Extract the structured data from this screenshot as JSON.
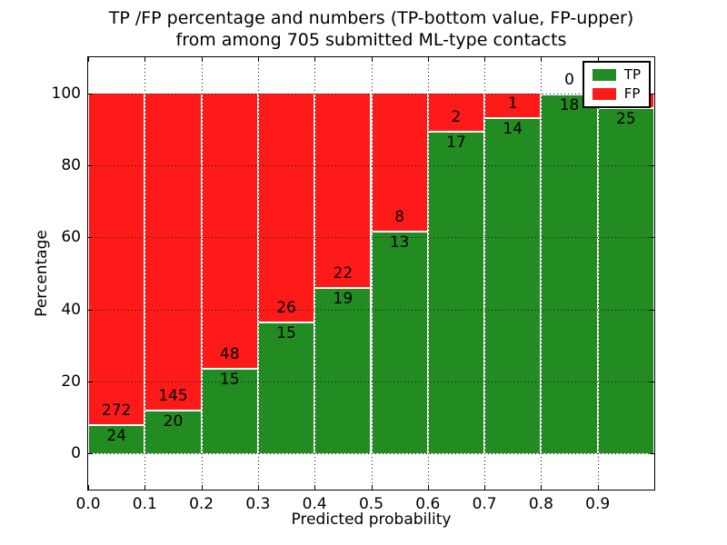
{
  "figure": {
    "title_line1": "TP /FP percentage and numbers (TP-bottom value, FP-upper)",
    "title_line2": "from among 705 submitted ML-type contacts"
  },
  "chart_data": {
    "type": "bar",
    "stacked": true,
    "title": "TP /FP percentage and numbers (TP-bottom value, FP-upper)\nfrom among 705 submitted ML-type contacts",
    "xlabel": "Predicted probability",
    "ylabel": "Percentage",
    "total_contacts": 705,
    "xlim": [
      0.0,
      1.0
    ],
    "ylim": [
      -10,
      110
    ],
    "bar_width": 0.1,
    "grid": "dotted",
    "legend_position": "upper right",
    "x_tick_labels": [
      "0.0",
      "0.1",
      "0.2",
      "0.3",
      "0.4",
      "0.5",
      "0.6",
      "0.7",
      "0.8",
      "0.9"
    ],
    "y_tick_values": [
      0,
      20,
      40,
      60,
      80,
      100
    ],
    "categories": [
      "0.0-0.1",
      "0.1-0.2",
      "0.2-0.3",
      "0.3-0.4",
      "0.4-0.5",
      "0.5-0.6",
      "0.6-0.7",
      "0.7-0.8",
      "0.8-0.9",
      "0.9-1.0"
    ],
    "series": [
      {
        "name": "TP",
        "color": "#228b22",
        "values": [
          24,
          20,
          15,
          15,
          19,
          13,
          17,
          14,
          18,
          25
        ]
      },
      {
        "name": "FP",
        "color": "#ff1a1a",
        "values": [
          272,
          145,
          48,
          26,
          22,
          8,
          2,
          1,
          0,
          1
        ]
      }
    ],
    "tp_percent": [
      8.1,
      12.1,
      23.8,
      36.6,
      46.3,
      61.9,
      89.5,
      93.3,
      100.0,
      96.2
    ],
    "fp_label_hidden_bins": [
      9
    ],
    "legend": {
      "entries": [
        {
          "label": "TP",
          "color": "#228b22"
        },
        {
          "label": "FP",
          "color": "#ff1a1a"
        }
      ]
    }
  }
}
